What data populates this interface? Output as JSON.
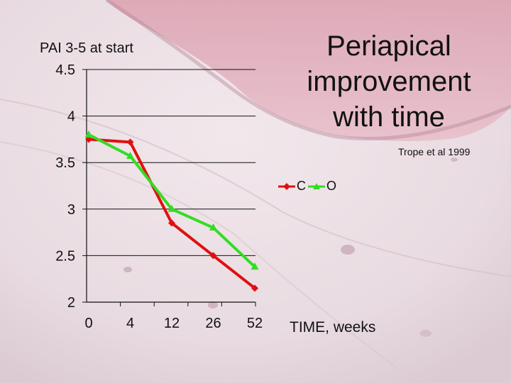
{
  "slide": {
    "title": "Periapical improvement with time",
    "citation": "Trope et al 1999"
  },
  "colors": {
    "series_c": "#e01010",
    "series_o": "#33dd22",
    "grid": "#111111",
    "tissue_pink": "#e3b4c0"
  },
  "chart_data": {
    "type": "line",
    "title": "Periapical improvement with time",
    "ylabel": "PAI 3-5 at start",
    "xlabel": "TIME, weeks",
    "categories": [
      "0",
      "4",
      "12",
      "26",
      "52"
    ],
    "yticks": [
      "4.5",
      "4",
      "3.5",
      "3",
      "2.5",
      "2"
    ],
    "ylim": [
      2,
      4.5
    ],
    "grid": true,
    "legend": "right",
    "series": [
      {
        "name": "C",
        "marker": "diamond",
        "values": [
          3.75,
          3.72,
          2.85,
          2.5,
          2.15
        ]
      },
      {
        "name": "O",
        "marker": "triangle",
        "values": [
          3.8,
          3.57,
          3.0,
          2.8,
          2.38
        ]
      }
    ]
  }
}
